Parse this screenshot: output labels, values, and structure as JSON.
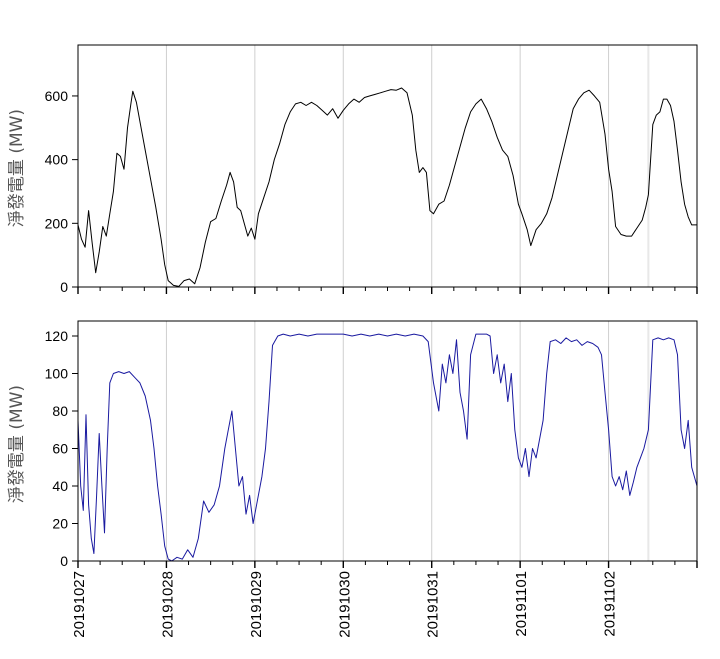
{
  "chart_data": [
    {
      "type": "line",
      "ylabel": "淨發電量 (MW)",
      "ylim": [
        0,
        760
      ],
      "yticks": [
        0,
        200,
        400,
        600
      ],
      "x_range": [
        0,
        7.0
      ],
      "gridlines_x": [
        1,
        2,
        3,
        4,
        5,
        6,
        6.45
      ],
      "color": "#000000",
      "series": [
        {
          "points": [
            [
              0.0,
              195
            ],
            [
              0.04,
              150
            ],
            [
              0.08,
              125
            ],
            [
              0.12,
              240
            ],
            [
              0.16,
              140
            ],
            [
              0.2,
              45
            ],
            [
              0.24,
              110
            ],
            [
              0.28,
              190
            ],
            [
              0.32,
              160
            ],
            [
              0.36,
              230
            ],
            [
              0.4,
              300
            ],
            [
              0.44,
              420
            ],
            [
              0.48,
              410
            ],
            [
              0.52,
              370
            ],
            [
              0.56,
              500
            ],
            [
              0.6,
              580
            ],
            [
              0.62,
              615
            ],
            [
              0.66,
              580
            ],
            [
              0.7,
              520
            ],
            [
              0.76,
              430
            ],
            [
              0.82,
              340
            ],
            [
              0.88,
              250
            ],
            [
              0.94,
              150
            ],
            [
              0.98,
              70
            ],
            [
              1.02,
              20
            ],
            [
              1.08,
              5
            ],
            [
              1.14,
              2
            ],
            [
              1.2,
              20
            ],
            [
              1.26,
              25
            ],
            [
              1.32,
              10
            ],
            [
              1.38,
              60
            ],
            [
              1.44,
              140
            ],
            [
              1.5,
              205
            ],
            [
              1.56,
              215
            ],
            [
              1.62,
              270
            ],
            [
              1.68,
              320
            ],
            [
              1.72,
              360
            ],
            [
              1.76,
              330
            ],
            [
              1.8,
              250
            ],
            [
              1.84,
              240
            ],
            [
              1.88,
              200
            ],
            [
              1.92,
              160
            ],
            [
              1.96,
              185
            ],
            [
              2.0,
              150
            ],
            [
              2.04,
              230
            ],
            [
              2.1,
              280
            ],
            [
              2.16,
              330
            ],
            [
              2.22,
              400
            ],
            [
              2.28,
              450
            ],
            [
              2.34,
              510
            ],
            [
              2.4,
              550
            ],
            [
              2.46,
              575
            ],
            [
              2.52,
              580
            ],
            [
              2.58,
              570
            ],
            [
              2.64,
              580
            ],
            [
              2.7,
              570
            ],
            [
              2.76,
              555
            ],
            [
              2.82,
              540
            ],
            [
              2.88,
              560
            ],
            [
              2.94,
              530
            ],
            [
              3.0,
              555
            ],
            [
              3.06,
              575
            ],
            [
              3.12,
              590
            ],
            [
              3.18,
              580
            ],
            [
              3.24,
              595
            ],
            [
              3.3,
              600
            ],
            [
              3.36,
              605
            ],
            [
              3.42,
              610
            ],
            [
              3.48,
              615
            ],
            [
              3.54,
              620
            ],
            [
              3.6,
              618
            ],
            [
              3.66,
              625
            ],
            [
              3.72,
              610
            ],
            [
              3.78,
              540
            ],
            [
              3.82,
              430
            ],
            [
              3.86,
              360
            ],
            [
              3.9,
              375
            ],
            [
              3.94,
              360
            ],
            [
              3.98,
              240
            ],
            [
              4.02,
              230
            ],
            [
              4.08,
              260
            ],
            [
              4.14,
              270
            ],
            [
              4.2,
              320
            ],
            [
              4.26,
              380
            ],
            [
              4.32,
              440
            ],
            [
              4.38,
              500
            ],
            [
              4.44,
              550
            ],
            [
              4.5,
              575
            ],
            [
              4.56,
              590
            ],
            [
              4.62,
              560
            ],
            [
              4.68,
              520
            ],
            [
              4.74,
              470
            ],
            [
              4.8,
              430
            ],
            [
              4.86,
              410
            ],
            [
              4.92,
              350
            ],
            [
              4.98,
              260
            ],
            [
              5.02,
              230
            ],
            [
              5.08,
              180
            ],
            [
              5.12,
              130
            ],
            [
              5.18,
              180
            ],
            [
              5.24,
              200
            ],
            [
              5.3,
              230
            ],
            [
              5.36,
              280
            ],
            [
              5.42,
              350
            ],
            [
              5.48,
              420
            ],
            [
              5.54,
              490
            ],
            [
              5.6,
              560
            ],
            [
              5.66,
              590
            ],
            [
              5.72,
              610
            ],
            [
              5.78,
              618
            ],
            [
              5.84,
              600
            ],
            [
              5.9,
              580
            ],
            [
              5.96,
              480
            ],
            [
              6.0,
              370
            ],
            [
              6.04,
              300
            ],
            [
              6.08,
              190
            ],
            [
              6.14,
              165
            ],
            [
              6.2,
              160
            ],
            [
              6.26,
              160
            ],
            [
              6.32,
              185
            ],
            [
              6.38,
              210
            ],
            [
              6.42,
              250
            ],
            [
              6.45,
              290
            ],
            [
              6.5,
              510
            ],
            [
              6.54,
              540
            ],
            [
              6.58,
              550
            ],
            [
              6.62,
              590
            ],
            [
              6.66,
              590
            ],
            [
              6.7,
              570
            ],
            [
              6.74,
              520
            ],
            [
              6.78,
              430
            ],
            [
              6.82,
              330
            ],
            [
              6.86,
              260
            ],
            [
              6.9,
              220
            ],
            [
              6.94,
              195
            ],
            [
              7.0,
              195
            ]
          ]
        }
      ]
    },
    {
      "type": "line",
      "ylabel": "淨發電量 (MW)",
      "ylim": [
        0,
        128
      ],
      "yticks": [
        0,
        20,
        40,
        60,
        80,
        100,
        120
      ],
      "x_range": [
        0,
        7.0
      ],
      "xtick_labels": [
        "20191027",
        "20191028",
        "20191029",
        "20191030",
        "20191031",
        "20191101",
        "20191102"
      ],
      "gridlines_x": [
        1,
        2,
        3,
        4,
        5,
        6,
        6.45
      ],
      "color": "#1a1aa0",
      "series": [
        {
          "points": [
            [
              0.0,
              75
            ],
            [
              0.03,
              40
            ],
            [
              0.06,
              27
            ],
            [
              0.09,
              78
            ],
            [
              0.12,
              30
            ],
            [
              0.15,
              12
            ],
            [
              0.18,
              4
            ],
            [
              0.21,
              35
            ],
            [
              0.24,
              68
            ],
            [
              0.27,
              40
            ],
            [
              0.3,
              15
            ],
            [
              0.33,
              60
            ],
            [
              0.36,
              95
            ],
            [
              0.4,
              100
            ],
            [
              0.46,
              101
            ],
            [
              0.52,
              100
            ],
            [
              0.58,
              101
            ],
            [
              0.64,
              98
            ],
            [
              0.7,
              95
            ],
            [
              0.76,
              88
            ],
            [
              0.82,
              75
            ],
            [
              0.86,
              60
            ],
            [
              0.9,
              40
            ],
            [
              0.94,
              25
            ],
            [
              0.98,
              8
            ],
            [
              1.02,
              1
            ],
            [
              1.06,
              0
            ],
            [
              1.12,
              2
            ],
            [
              1.18,
              1
            ],
            [
              1.24,
              6
            ],
            [
              1.3,
              2
            ],
            [
              1.36,
              12
            ],
            [
              1.42,
              32
            ],
            [
              1.48,
              26
            ],
            [
              1.54,
              30
            ],
            [
              1.6,
              40
            ],
            [
              1.66,
              60
            ],
            [
              1.7,
              70
            ],
            [
              1.74,
              80
            ],
            [
              1.78,
              60
            ],
            [
              1.82,
              40
            ],
            [
              1.86,
              45
            ],
            [
              1.9,
              25
            ],
            [
              1.94,
              35
            ],
            [
              1.98,
              20
            ],
            [
              2.02,
              30
            ],
            [
              2.08,
              45
            ],
            [
              2.12,
              60
            ],
            [
              2.16,
              85
            ],
            [
              2.2,
              115
            ],
            [
              2.26,
              120
            ],
            [
              2.32,
              121
            ],
            [
              2.4,
              120
            ],
            [
              2.5,
              121
            ],
            [
              2.6,
              120
            ],
            [
              2.7,
              121
            ],
            [
              2.8,
              121
            ],
            [
              2.9,
              121
            ],
            [
              3.0,
              121
            ],
            [
              3.1,
              120
            ],
            [
              3.2,
              121
            ],
            [
              3.3,
              120
            ],
            [
              3.4,
              121
            ],
            [
              3.5,
              120
            ],
            [
              3.6,
              121
            ],
            [
              3.7,
              120
            ],
            [
              3.8,
              121
            ],
            [
              3.9,
              120
            ],
            [
              3.96,
              117
            ],
            [
              4.02,
              95
            ],
            [
              4.08,
              80
            ],
            [
              4.12,
              105
            ],
            [
              4.16,
              95
            ],
            [
              4.2,
              110
            ],
            [
              4.24,
              100
            ],
            [
              4.28,
              118
            ],
            [
              4.32,
              90
            ],
            [
              4.36,
              80
            ],
            [
              4.4,
              65
            ],
            [
              4.44,
              110
            ],
            [
              4.5,
              121
            ],
            [
              4.56,
              121
            ],
            [
              4.62,
              121
            ],
            [
              4.66,
              120
            ],
            [
              4.7,
              100
            ],
            [
              4.74,
              110
            ],
            [
              4.78,
              95
            ],
            [
              4.82,
              105
            ],
            [
              4.86,
              85
            ],
            [
              4.9,
              100
            ],
            [
              4.94,
              70
            ],
            [
              4.98,
              55
            ],
            [
              5.02,
              50
            ],
            [
              5.06,
              60
            ],
            [
              5.1,
              45
            ],
            [
              5.14,
              60
            ],
            [
              5.18,
              55
            ],
            [
              5.22,
              65
            ],
            [
              5.26,
              75
            ],
            [
              5.3,
              100
            ],
            [
              5.34,
              117
            ],
            [
              5.4,
              118
            ],
            [
              5.46,
              116
            ],
            [
              5.52,
              119
            ],
            [
              5.58,
              117
            ],
            [
              5.64,
              118
            ],
            [
              5.7,
              115
            ],
            [
              5.76,
              117
            ],
            [
              5.82,
              116
            ],
            [
              5.88,
              114
            ],
            [
              5.92,
              110
            ],
            [
              5.96,
              90
            ],
            [
              6.0,
              70
            ],
            [
              6.04,
              45
            ],
            [
              6.08,
              40
            ],
            [
              6.12,
              45
            ],
            [
              6.16,
              38
            ],
            [
              6.2,
              48
            ],
            [
              6.24,
              35
            ],
            [
              6.28,
              42
            ],
            [
              6.32,
              50
            ],
            [
              6.36,
              55
            ],
            [
              6.4,
              60
            ],
            [
              6.45,
              70
            ],
            [
              6.5,
              118
            ],
            [
              6.56,
              119
            ],
            [
              6.62,
              118
            ],
            [
              6.68,
              119
            ],
            [
              6.74,
              118
            ],
            [
              6.78,
              110
            ],
            [
              6.82,
              70
            ],
            [
              6.86,
              60
            ],
            [
              6.9,
              75
            ],
            [
              6.94,
              50
            ],
            [
              7.0,
              40
            ]
          ]
        }
      ]
    }
  ]
}
